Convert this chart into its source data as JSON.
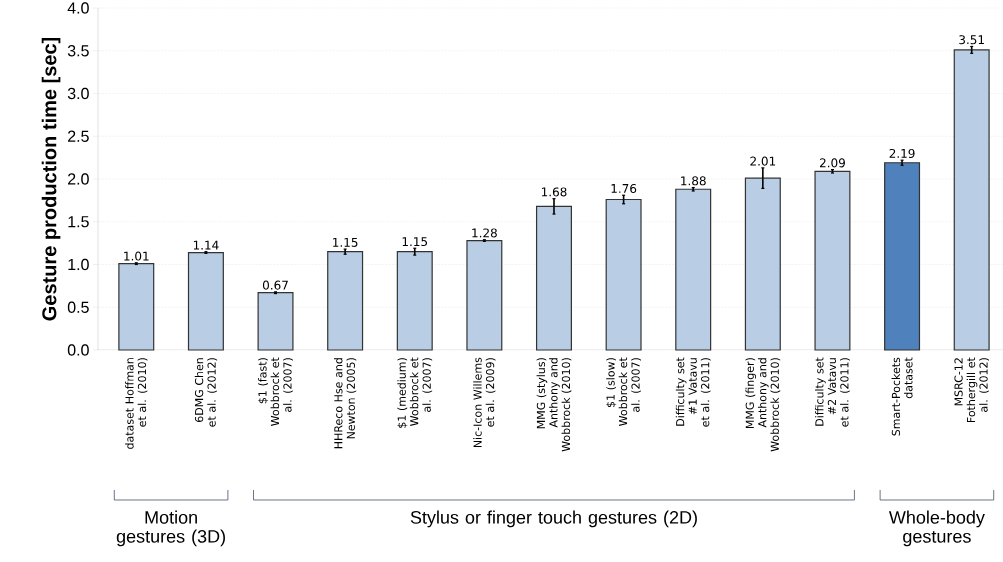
{
  "chart_data": {
    "type": "bar",
    "ylabel": "Gesture production time [sec]",
    "categories": [
      "dataset Hoffman et al. (2010)",
      "6DMG Chen et al. (2012)",
      "$1 (fast) Wobbrock et al. (2007)",
      "HHReco Hse and Newton (2005)",
      "$1 (medium) Wobbrock et al. (2007)",
      "Nic-Icon Willems et al. (2009)",
      "MMG (stylus) Anthony and Wobbrock (2010)",
      "$1 (slow) Wobbrock et al. (2007)",
      "Difficulty set #1 Vatavu et al. (2011)",
      "MMG (finger) Anthony and Wobbrock (2010)",
      "Difficulty set #2 Vatavu et al. (2011)",
      "Smart-Pockets dataset",
      "MSRC-12 Fothergill et al. (2012)"
    ],
    "values": [
      1.01,
      1.14,
      0.67,
      1.15,
      1.15,
      1.28,
      1.68,
      1.76,
      1.88,
      2.01,
      2.09,
      2.19,
      3.51
    ],
    "errors": [
      0.01,
      0.01,
      0.01,
      0.03,
      0.04,
      0.01,
      0.09,
      0.05,
      0.02,
      0.12,
      0.02,
      0.03,
      0.04
    ],
    "colors": [
      "#b9cde5",
      "#b9cde5",
      "#b9cde5",
      "#b9cde5",
      "#b9cde5",
      "#b9cde5",
      "#b9cde5",
      "#b9cde5",
      "#b9cde5",
      "#b9cde5",
      "#b9cde5",
      "#4f81bd",
      "#b9cde5"
    ],
    "data_labels": true,
    "ylim": [
      0,
      4
    ],
    "yticks": [
      {
        "value": 0,
        "label": "0.0"
      },
      {
        "value": 0.5,
        "label": "0.5"
      },
      {
        "value": 1,
        "label": "1.0"
      },
      {
        "value": 1.5,
        "label": "1.5"
      },
      {
        "value": 2,
        "label": "2.0"
      },
      {
        "value": 2.5,
        "label": "2.5"
      },
      {
        "value": 3,
        "label": "3.0"
      },
      {
        "value": 3.5,
        "label": "3.5"
      },
      {
        "value": 4,
        "label": "4.0"
      }
    ],
    "grid": "y",
    "annotations": [
      "Motion gestures (3D)",
      "Stylus or finger touch gestures (2D)",
      "Whole-body gestures"
    ]
  }
}
